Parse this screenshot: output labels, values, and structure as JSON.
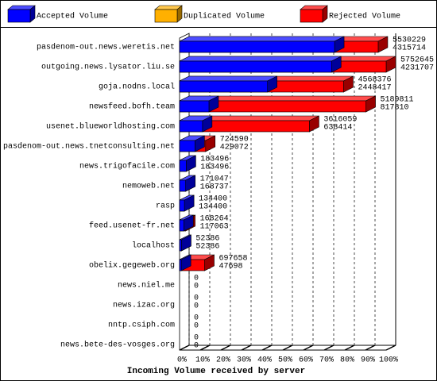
{
  "chart_data": {
    "type": "bar",
    "orientation": "horizontal",
    "overlap": true,
    "legend": "top",
    "x_label": "Incoming Volume received by server",
    "categories": [
      "pasdenom-out.news.weretis.net",
      "outgoing.news.lysator.liu.se",
      "goja.nodns.local",
      "newsfeed.bofh.team",
      "usenet.blueworldhosting.com",
      "pasdenom-out.news.tnetconsulting.net",
      "news.trigofacile.com",
      "nemoweb.net",
      "rasp",
      "feed.usenet-fr.net",
      "localhost",
      "obelix.gegeweb.org",
      "news.niel.me",
      "news.izac.org",
      "nntp.csiph.com",
      "news.bete-des-vosges.org"
    ],
    "series": [
      {
        "name": "Accepted Volume",
        "color": "#0000ff",
        "values": [
          4315714,
          4231707,
          2448417,
          817810,
          638414,
          429072,
          183496,
          168737,
          134400,
          117063,
          52386,
          47698,
          0,
          0,
          0,
          0
        ]
      },
      {
        "name": "Duplicated Volume",
        "color": "#ffb000"
      },
      {
        "name": "Rejected Volume",
        "color": "#ff0000",
        "values": [
          5530229,
          5752645,
          4568376,
          5189811,
          3616059,
          724590,
          183496,
          171047,
          134400,
          168264,
          52386,
          697658,
          0,
          0,
          0,
          0
        ]
      }
    ],
    "xlim": [
      0,
      5752645
    ],
    "xticks": [
      {
        "value": 0,
        "label": "0%"
      },
      {
        "value": 575264.5,
        "label": "10%"
      },
      {
        "value": 1150529,
        "label": "20%"
      },
      {
        "value": 1725793.5,
        "label": "30%"
      },
      {
        "value": 2301058,
        "label": "40%"
      },
      {
        "value": 2876322.5,
        "label": "50%"
      },
      {
        "value": 3451587,
        "label": "60%"
      },
      {
        "value": 4026851.5,
        "label": "70%"
      },
      {
        "value": 4602116,
        "label": "80%"
      },
      {
        "value": 5177380.5,
        "label": "90%"
      },
      {
        "value": 5752645,
        "label": "100%"
      }
    ],
    "grid": true
  }
}
